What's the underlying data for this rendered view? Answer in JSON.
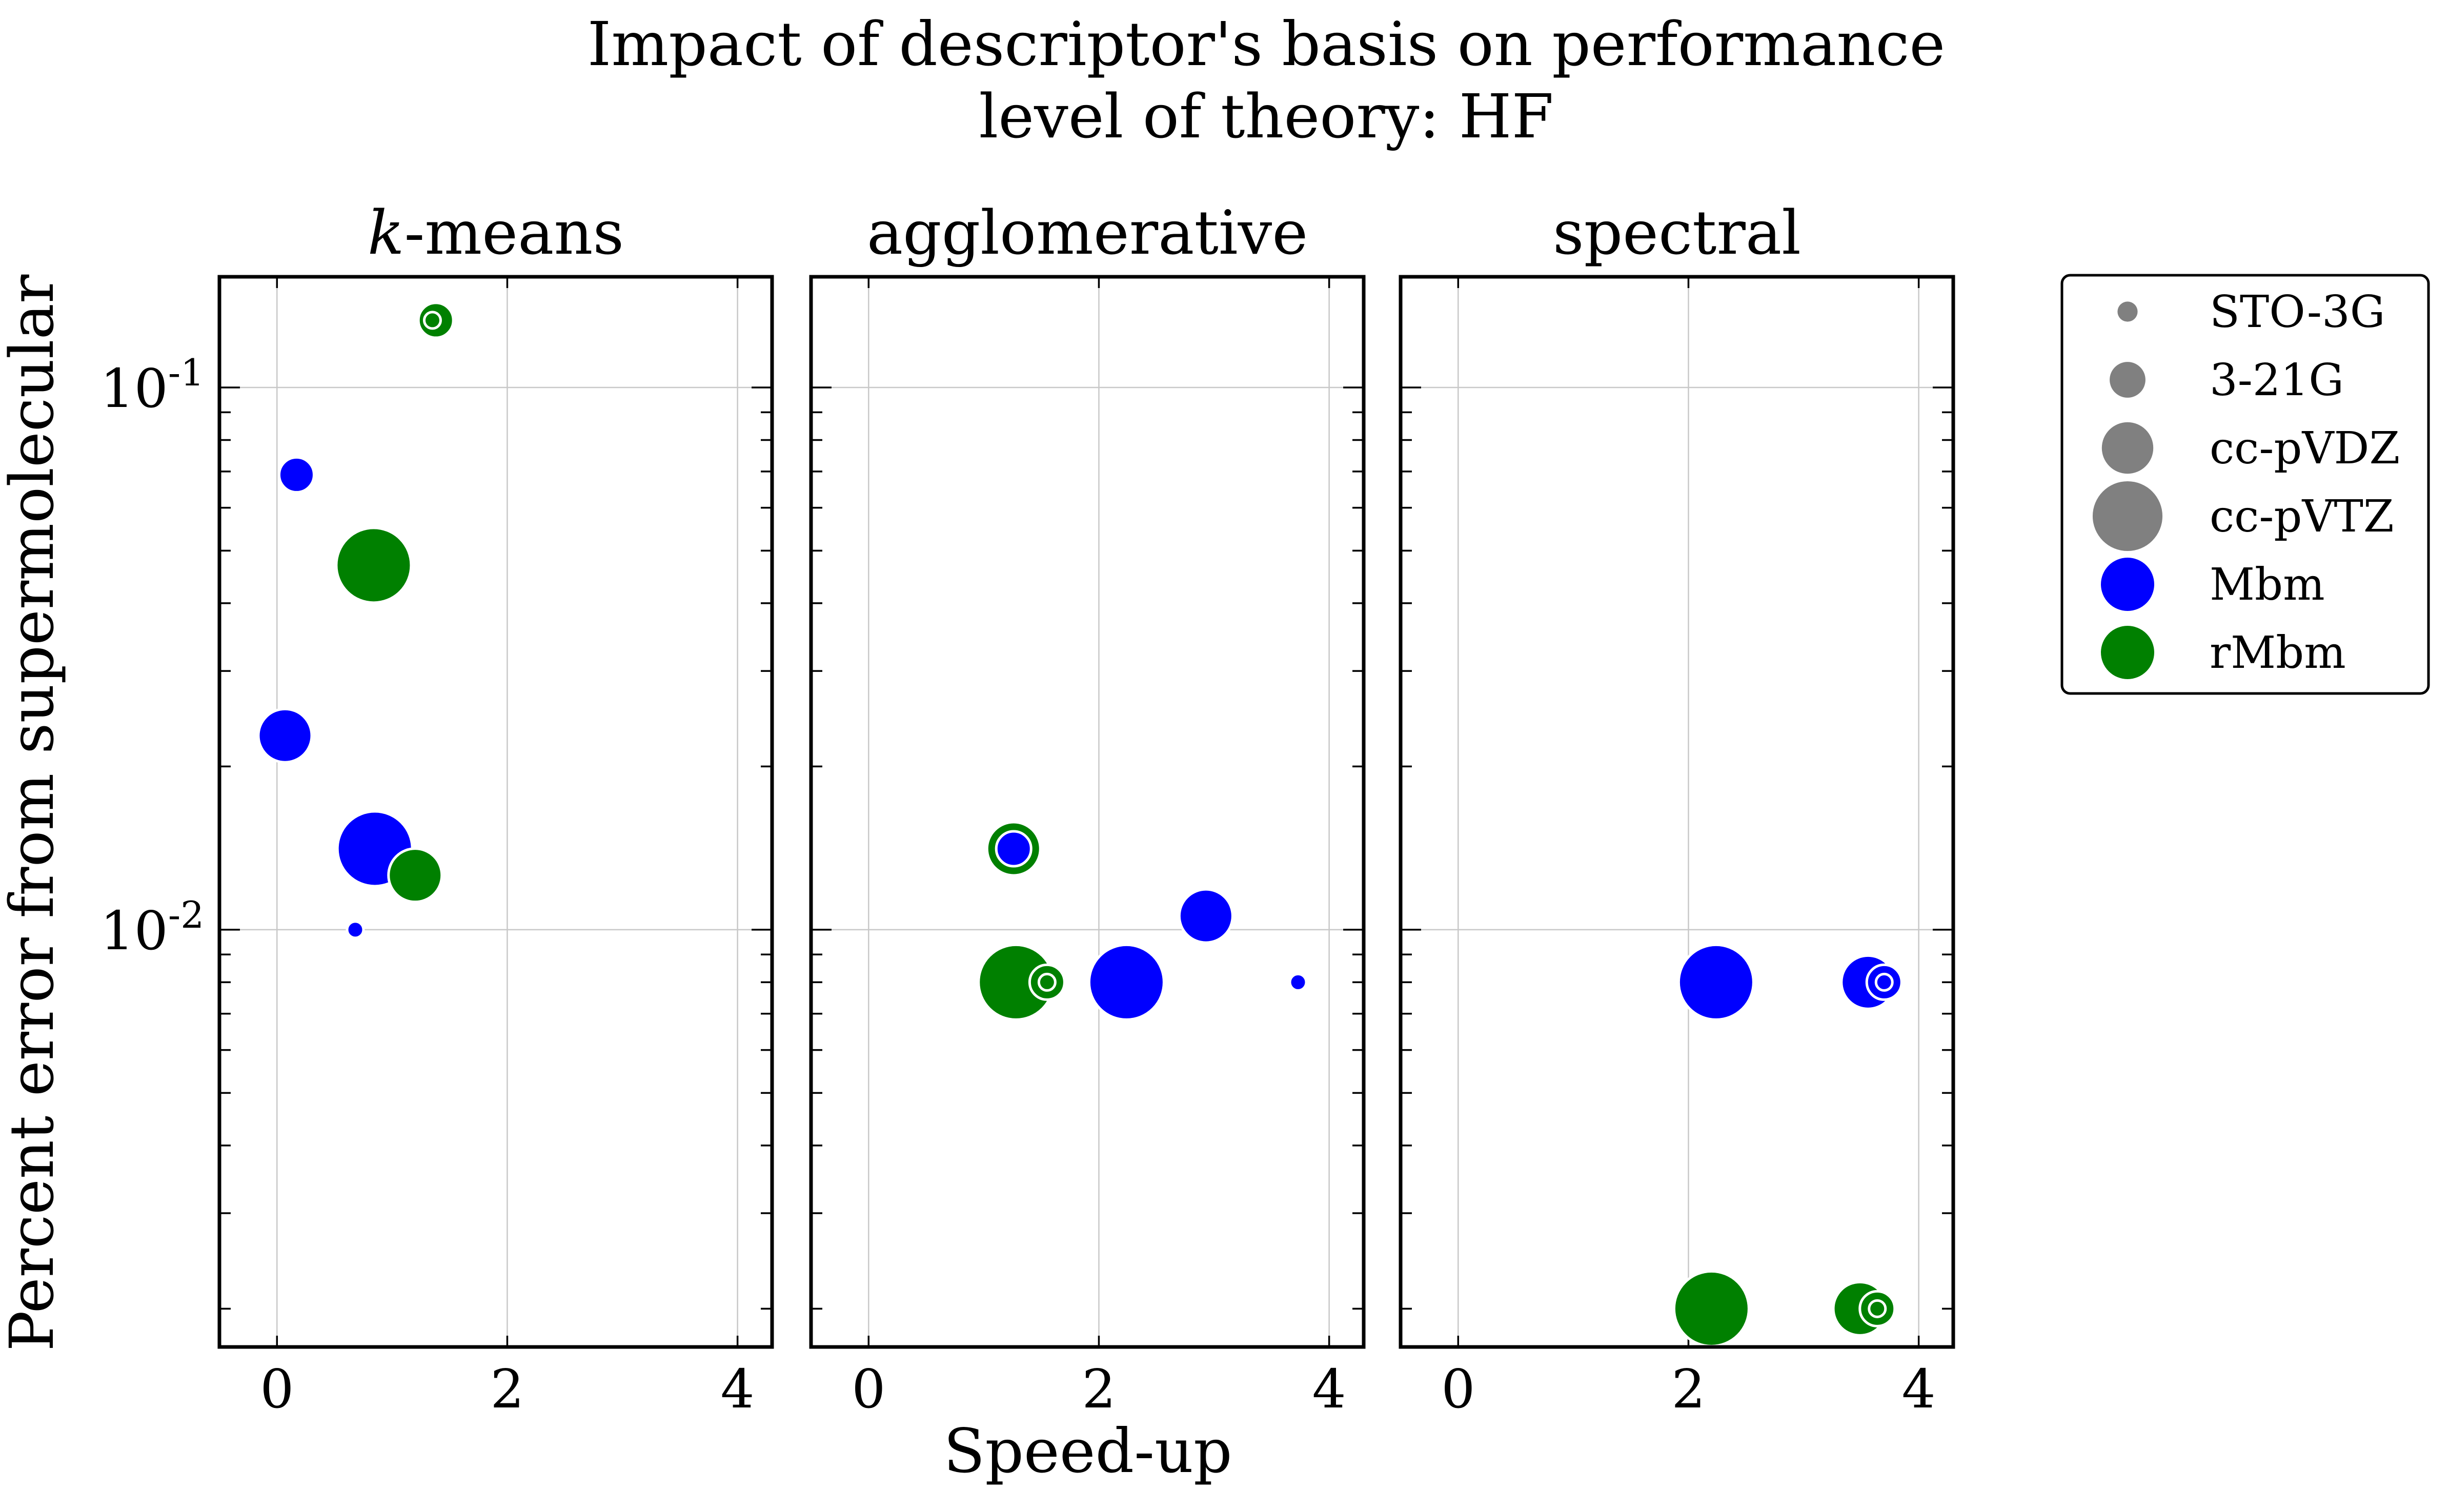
{
  "chart_data": {
    "type": "scatter",
    "title": "Impact of descriptor's basis on performance",
    "subtitle": "level of theory: HF",
    "xlabel": "Speed-up",
    "ylabel": "Percent error from supermolecular",
    "xlim": [
      -0.5,
      4.3
    ],
    "ylim": [
      0.0017,
      0.16
    ],
    "yscale": "log",
    "grid": true,
    "legend_placement": "right of plots",
    "x_ticks": [
      "0",
      "2",
      "4"
    ],
    "y_ticks": [
      {
        "value": 0.1,
        "base": "10",
        "exp": "-1"
      },
      {
        "value": 0.01,
        "base": "10",
        "exp": "-2"
      }
    ],
    "colors": {
      "Mbm": "#0000ff",
      "rMbm": "#008000",
      "legend_gray": "#808080"
    },
    "basis_sets": [
      "STO-3G",
      "3-21G",
      "cc-pVDZ",
      "cc-pVTZ"
    ],
    "legend": {
      "sizes": [
        {
          "label": "STO-3G",
          "basis": 0
        },
        {
          "label": "3-21G",
          "basis": 1
        },
        {
          "label": "cc-pVDZ",
          "basis": 2
        },
        {
          "label": "cc-pVTZ",
          "basis": 3
        }
      ],
      "colors": [
        {
          "label": "Mbm",
          "color": "#0000ff"
        },
        {
          "label": "rMbm",
          "color": "#008000"
        }
      ]
    },
    "panels": [
      {
        "title_italic": "k",
        "title": "-means",
        "points": [
          {
            "descriptor": "rMbm",
            "basis": 1,
            "x": 1.38,
            "y": 0.133
          },
          {
            "descriptor": "rMbm",
            "basis": 0,
            "x": 1.35,
            "y": 0.133
          },
          {
            "descriptor": "Mbm",
            "basis": 1,
            "x": 0.17,
            "y": 0.069
          },
          {
            "descriptor": "rMbm",
            "basis": 3,
            "x": 0.84,
            "y": 0.047
          },
          {
            "descriptor": "Mbm",
            "basis": 2,
            "x": 0.07,
            "y": 0.0228
          },
          {
            "descriptor": "Mbm",
            "basis": 3,
            "x": 0.85,
            "y": 0.0141
          },
          {
            "descriptor": "rMbm",
            "basis": 2,
            "x": 1.2,
            "y": 0.0126
          },
          {
            "descriptor": "Mbm",
            "basis": 0,
            "x": 0.68,
            "y": 0.01
          }
        ]
      },
      {
        "title_italic": "",
        "title": "agglomerative",
        "points": [
          {
            "descriptor": "rMbm",
            "basis": 2,
            "x": 1.26,
            "y": 0.0141
          },
          {
            "descriptor": "Mbm",
            "basis": 1,
            "x": 1.26,
            "y": 0.0141
          },
          {
            "descriptor": "Mbm",
            "basis": 2,
            "x": 2.93,
            "y": 0.0106
          },
          {
            "descriptor": "rMbm",
            "basis": 3,
            "x": 1.28,
            "y": 0.008
          },
          {
            "descriptor": "rMbm",
            "basis": 1,
            "x": 1.55,
            "y": 0.008
          },
          {
            "descriptor": "rMbm",
            "basis": 0,
            "x": 1.55,
            "y": 0.008
          },
          {
            "descriptor": "Mbm",
            "basis": 3,
            "x": 2.24,
            "y": 0.008
          },
          {
            "descriptor": "Mbm",
            "basis": 0,
            "x": 3.73,
            "y": 0.008
          }
        ]
      },
      {
        "title_italic": "",
        "title": "spectral",
        "points": [
          {
            "descriptor": "Mbm",
            "basis": 3,
            "x": 2.24,
            "y": 0.008
          },
          {
            "descriptor": "Mbm",
            "basis": 2,
            "x": 3.56,
            "y": 0.008
          },
          {
            "descriptor": "Mbm",
            "basis": 1,
            "x": 3.7,
            "y": 0.008
          },
          {
            "descriptor": "Mbm",
            "basis": 0,
            "x": 3.7,
            "y": 0.008
          },
          {
            "descriptor": "rMbm",
            "basis": 3,
            "x": 2.2,
            "y": 0.002
          },
          {
            "descriptor": "rMbm",
            "basis": 2,
            "x": 3.49,
            "y": 0.002
          },
          {
            "descriptor": "rMbm",
            "basis": 1,
            "x": 3.64,
            "y": 0.002
          },
          {
            "descriptor": "rMbm",
            "basis": 0,
            "x": 3.64,
            "y": 0.002
          }
        ]
      }
    ]
  }
}
